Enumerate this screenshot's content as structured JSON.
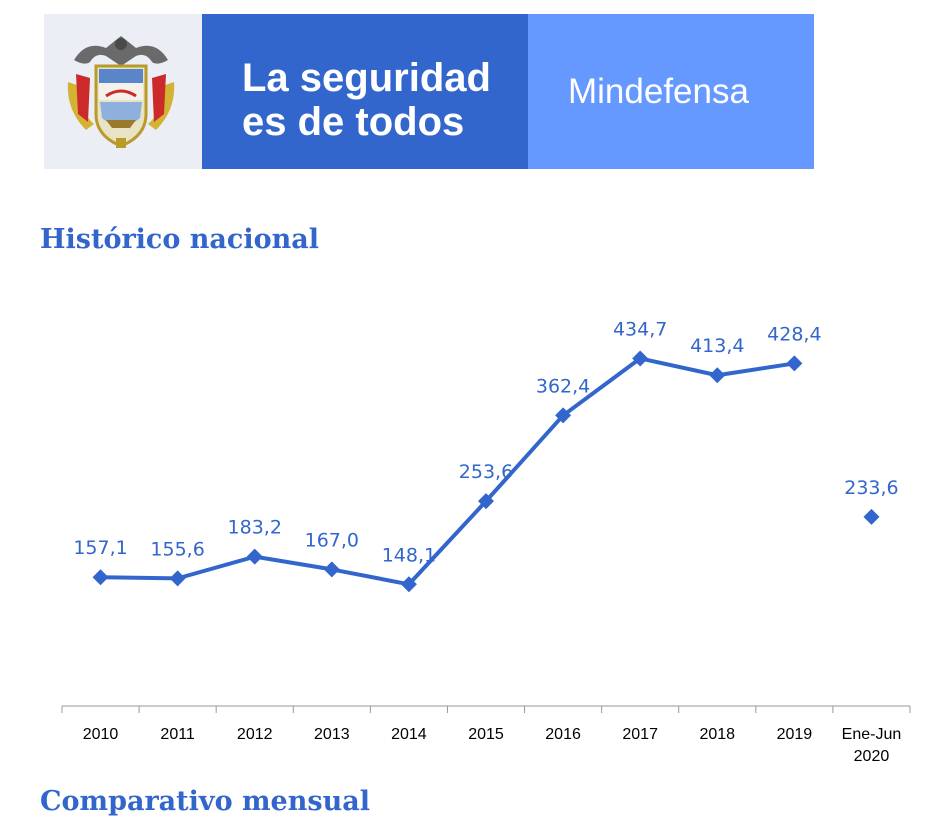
{
  "header": {
    "slogan_line1": "La seguridad",
    "slogan_line2": "es de todos",
    "ministry": "Mindefensa"
  },
  "colors": {
    "accent": "#3366cc",
    "light_blue": "#6699ff",
    "seal_background": "#ebeef5"
  },
  "sections": {
    "historico_title": "Histórico nacional",
    "comparativo_title": "Comparativo mensual"
  },
  "chart_data": {
    "type": "line",
    "title": "Histórico nacional",
    "xlabel": "",
    "ylabel": "",
    "grid": false,
    "legend": "none",
    "ylim": [
      0,
      520
    ],
    "categories": [
      "2010",
      "2011",
      "2012",
      "2013",
      "2014",
      "2015",
      "2016",
      "2017",
      "2018",
      "2019",
      "Ene-Jun 2020"
    ],
    "category_labels": [
      [
        "2010"
      ],
      [
        "2011"
      ],
      [
        "2012"
      ],
      [
        "2013"
      ],
      [
        "2014"
      ],
      [
        "2015"
      ],
      [
        "2016"
      ],
      [
        "2017"
      ],
      [
        "2018"
      ],
      [
        "2019"
      ],
      [
        "Ene-Jun",
        "2020"
      ]
    ],
    "series": [
      {
        "values": [
          157.1,
          155.6,
          183.2,
          167.0,
          148.1,
          253.6,
          362.4,
          434.7,
          413.4,
          428.4,
          null
        ],
        "connected": true
      },
      {
        "values": [
          null,
          null,
          null,
          null,
          null,
          null,
          null,
          null,
          null,
          null,
          233.6
        ],
        "connected": false
      }
    ],
    "data_labels": [
      "157,1",
      "155,6",
      "183,2",
      "167,0",
      "148,1",
      "253,6",
      "362,4",
      "434,7",
      "413,4",
      "428,4",
      "233,6"
    ],
    "color": "#3366cc"
  }
}
